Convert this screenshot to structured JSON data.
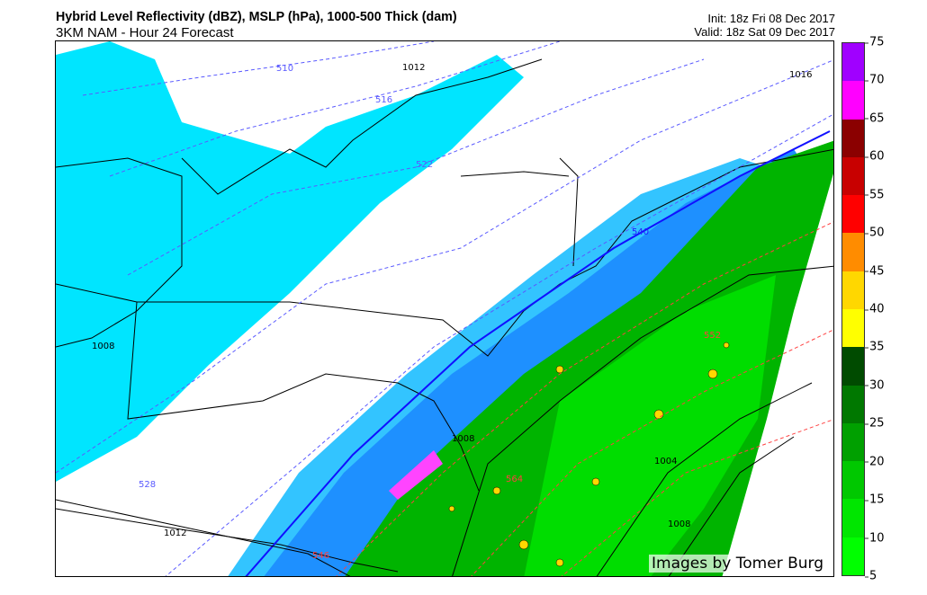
{
  "header": {
    "title": "Hybrid Level Reflectivity (dBZ),  MSLP (hPa),  1000-500 Thick (dam)",
    "subtitle": "3KM NAM - Hour 24 Forecast",
    "init": "Init: 18z Fri 08 Dec 2017",
    "valid": "Valid: 18z Sat 09 Dec 2017"
  },
  "map": {
    "watermark": "Images by Tomer Burg",
    "precip_colors": {
      "light_snow": "#00e5ff",
      "snow": "#1e90ff",
      "rain": "#00c800",
      "heavy": "#ffd700",
      "mix": "#ff44ff"
    },
    "thickness_labels": [
      "510",
      "516",
      "522",
      "528",
      "540",
      "546",
      "552",
      "564"
    ],
    "pressure_labels": [
      "1012",
      "1016",
      "1008",
      "1012",
      "1008",
      "1004",
      "1008"
    ]
  },
  "colorbar": {
    "ticks": [
      "5",
      "10",
      "15",
      "20",
      "25",
      "30",
      "35",
      "40",
      "45",
      "50",
      "55",
      "60",
      "65",
      "70",
      "75"
    ],
    "colors": [
      "#00ff00",
      "#00e600",
      "#00c800",
      "#00a000",
      "#007800",
      "#004b00",
      "#ffff00",
      "#ffd700",
      "#ff8c00",
      "#ff0000",
      "#c80000",
      "#8b0000",
      "#ff00ff",
      "#a000ff"
    ]
  }
}
